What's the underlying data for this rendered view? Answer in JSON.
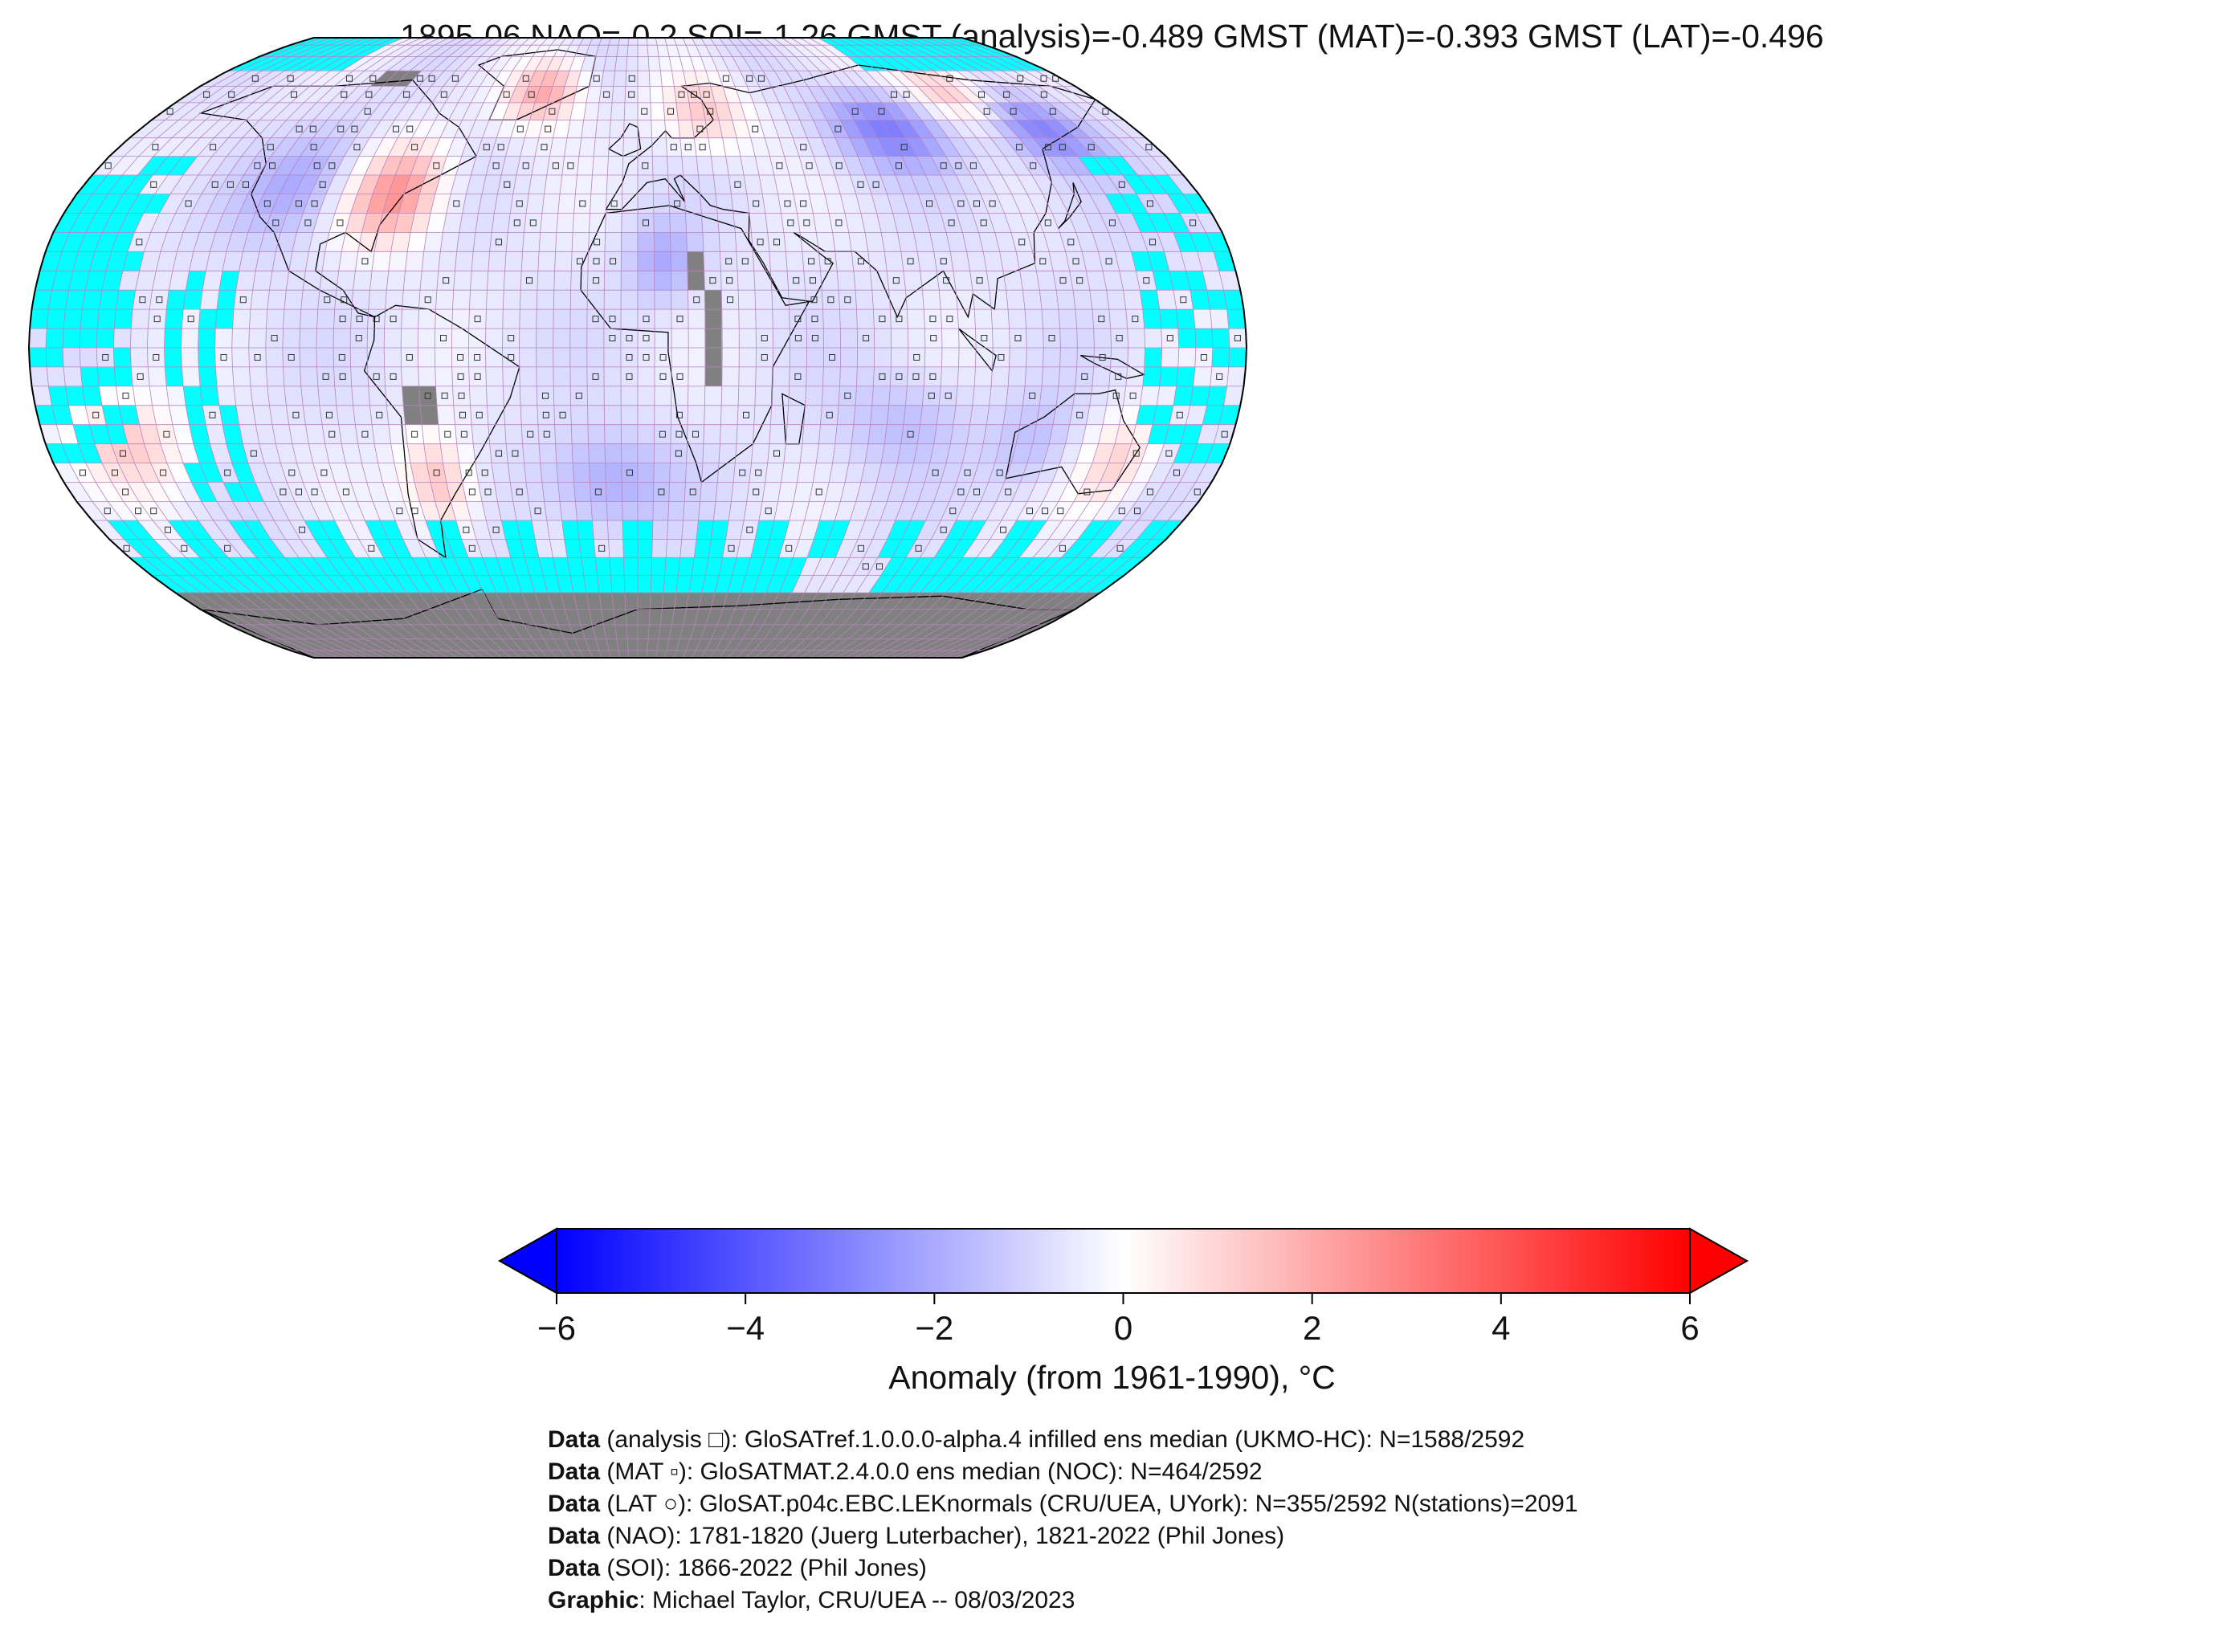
{
  "title": "1895-06 NAO=-0.2 SOI=-1.26 GMST (analysis)=-0.489 GMST (MAT)=-0.393 GMST (LAT)=-0.496",
  "map": {
    "projection": "Robinson",
    "central_longitude": 0,
    "grid_resolution_deg": 5,
    "ocean_missing_color": "#00ffff",
    "land_missing_color": "#808080",
    "gridline_color": "#b783bd",
    "coastline_color": "#000000",
    "anomaly_regions": [
      {
        "region": "western North America",
        "lon": [
          -125,
          -95
        ],
        "lat": [
          30,
          55
        ],
        "anomaly": -2.0
      },
      {
        "region": "eastern North America",
        "lon": [
          -90,
          -65
        ],
        "lat": [
          30,
          50
        ],
        "anomaly": 2.5
      },
      {
        "region": "Greenland",
        "lon": [
          -50,
          -25
        ],
        "lat": [
          62,
          75
        ],
        "anomaly": 2.0
      },
      {
        "region": "northern Europe",
        "lon": [
          10,
          40
        ],
        "lat": [
          55,
          70
        ],
        "anomaly": 1.2
      },
      {
        "region": "central Siberia",
        "lon": [
          70,
          110
        ],
        "lat": [
          50,
          65
        ],
        "anomaly": -3.0
      },
      {
        "region": "northern Siberia",
        "lon": [
          110,
          140
        ],
        "lat": [
          62,
          75
        ],
        "anomaly": 1.5
      },
      {
        "region": "eastern Siberia",
        "lon": [
          130,
          160
        ],
        "lat": [
          50,
          65
        ],
        "anomaly": -3.0
      },
      {
        "region": "Sahara",
        "lon": [
          0,
          15
        ],
        "lat": [
          15,
          30
        ],
        "anomaly": -2.0
      },
      {
        "region": "South Atlantic",
        "lon": [
          -30,
          10
        ],
        "lat": [
          -45,
          -25
        ],
        "anomaly": -2.0
      },
      {
        "region": "South Pacific",
        "lon": [
          -170,
          -140
        ],
        "lat": [
          -35,
          -15
        ],
        "anomaly": 1.2
      },
      {
        "region": "southern South America",
        "lon": [
          -70,
          -55
        ],
        "lat": [
          -45,
          -25
        ],
        "anomaly": 1.5
      },
      {
        "region": "Indian Ocean",
        "lon": [
          60,
          100
        ],
        "lat": [
          -30,
          -10
        ],
        "anomaly": -1.5
      },
      {
        "region": "western Pacific",
        "lon": [
          125,
          160
        ],
        "lat": [
          25,
          45
        ],
        "anomaly": -1.0
      },
      {
        "region": "western Australia",
        "lon": [
          110,
          130
        ],
        "lat": [
          -35,
          -15
        ],
        "anomaly": -1.5
      },
      {
        "region": "eastern Australia",
        "lon": [
          140,
          155
        ],
        "lat": [
          -40,
          -20
        ],
        "anomaly": 1.0
      }
    ]
  },
  "colorbar": {
    "vmin": -6,
    "vmax": 6,
    "tick_values": [
      -6,
      -4,
      -2,
      0,
      2,
      4,
      6
    ],
    "tick_labels": [
      "−6",
      "−4",
      "−2",
      "0",
      "2",
      "4",
      "6"
    ],
    "colors": [
      "#0000ff",
      "#ffffff",
      "#ff0000"
    ],
    "extend": "both",
    "label": "Anomaly (from 1961-1990), °C"
  },
  "credits": [
    {
      "key": "Data",
      "text": " (analysis □): GloSATref.1.0.0.0-alpha.4 infilled ens median (UKMO-HC): N=1588/2592"
    },
    {
      "key": "Data",
      "text": " (MAT ▫): GloSATMAT.2.4.0.0 ens median (NOC): N=464/2592"
    },
    {
      "key": "Data",
      "text": " (LAT ○): GloSAT.p04c.EBC.LEKnormals (CRU/UEA, UYork): N=355/2592 N(stations)=2091"
    },
    {
      "key": "Data",
      "text": " (NAO): 1781-1820 (Juerg Luterbacher), 1821-2022 (Phil Jones)"
    },
    {
      "key": "Data",
      "text": " (SOI): 1866-2022 (Phil Jones)"
    },
    {
      "key": "Graphic",
      "text": ": Michael Taylor, CRU/UEA -- 08/03/2023"
    }
  ]
}
